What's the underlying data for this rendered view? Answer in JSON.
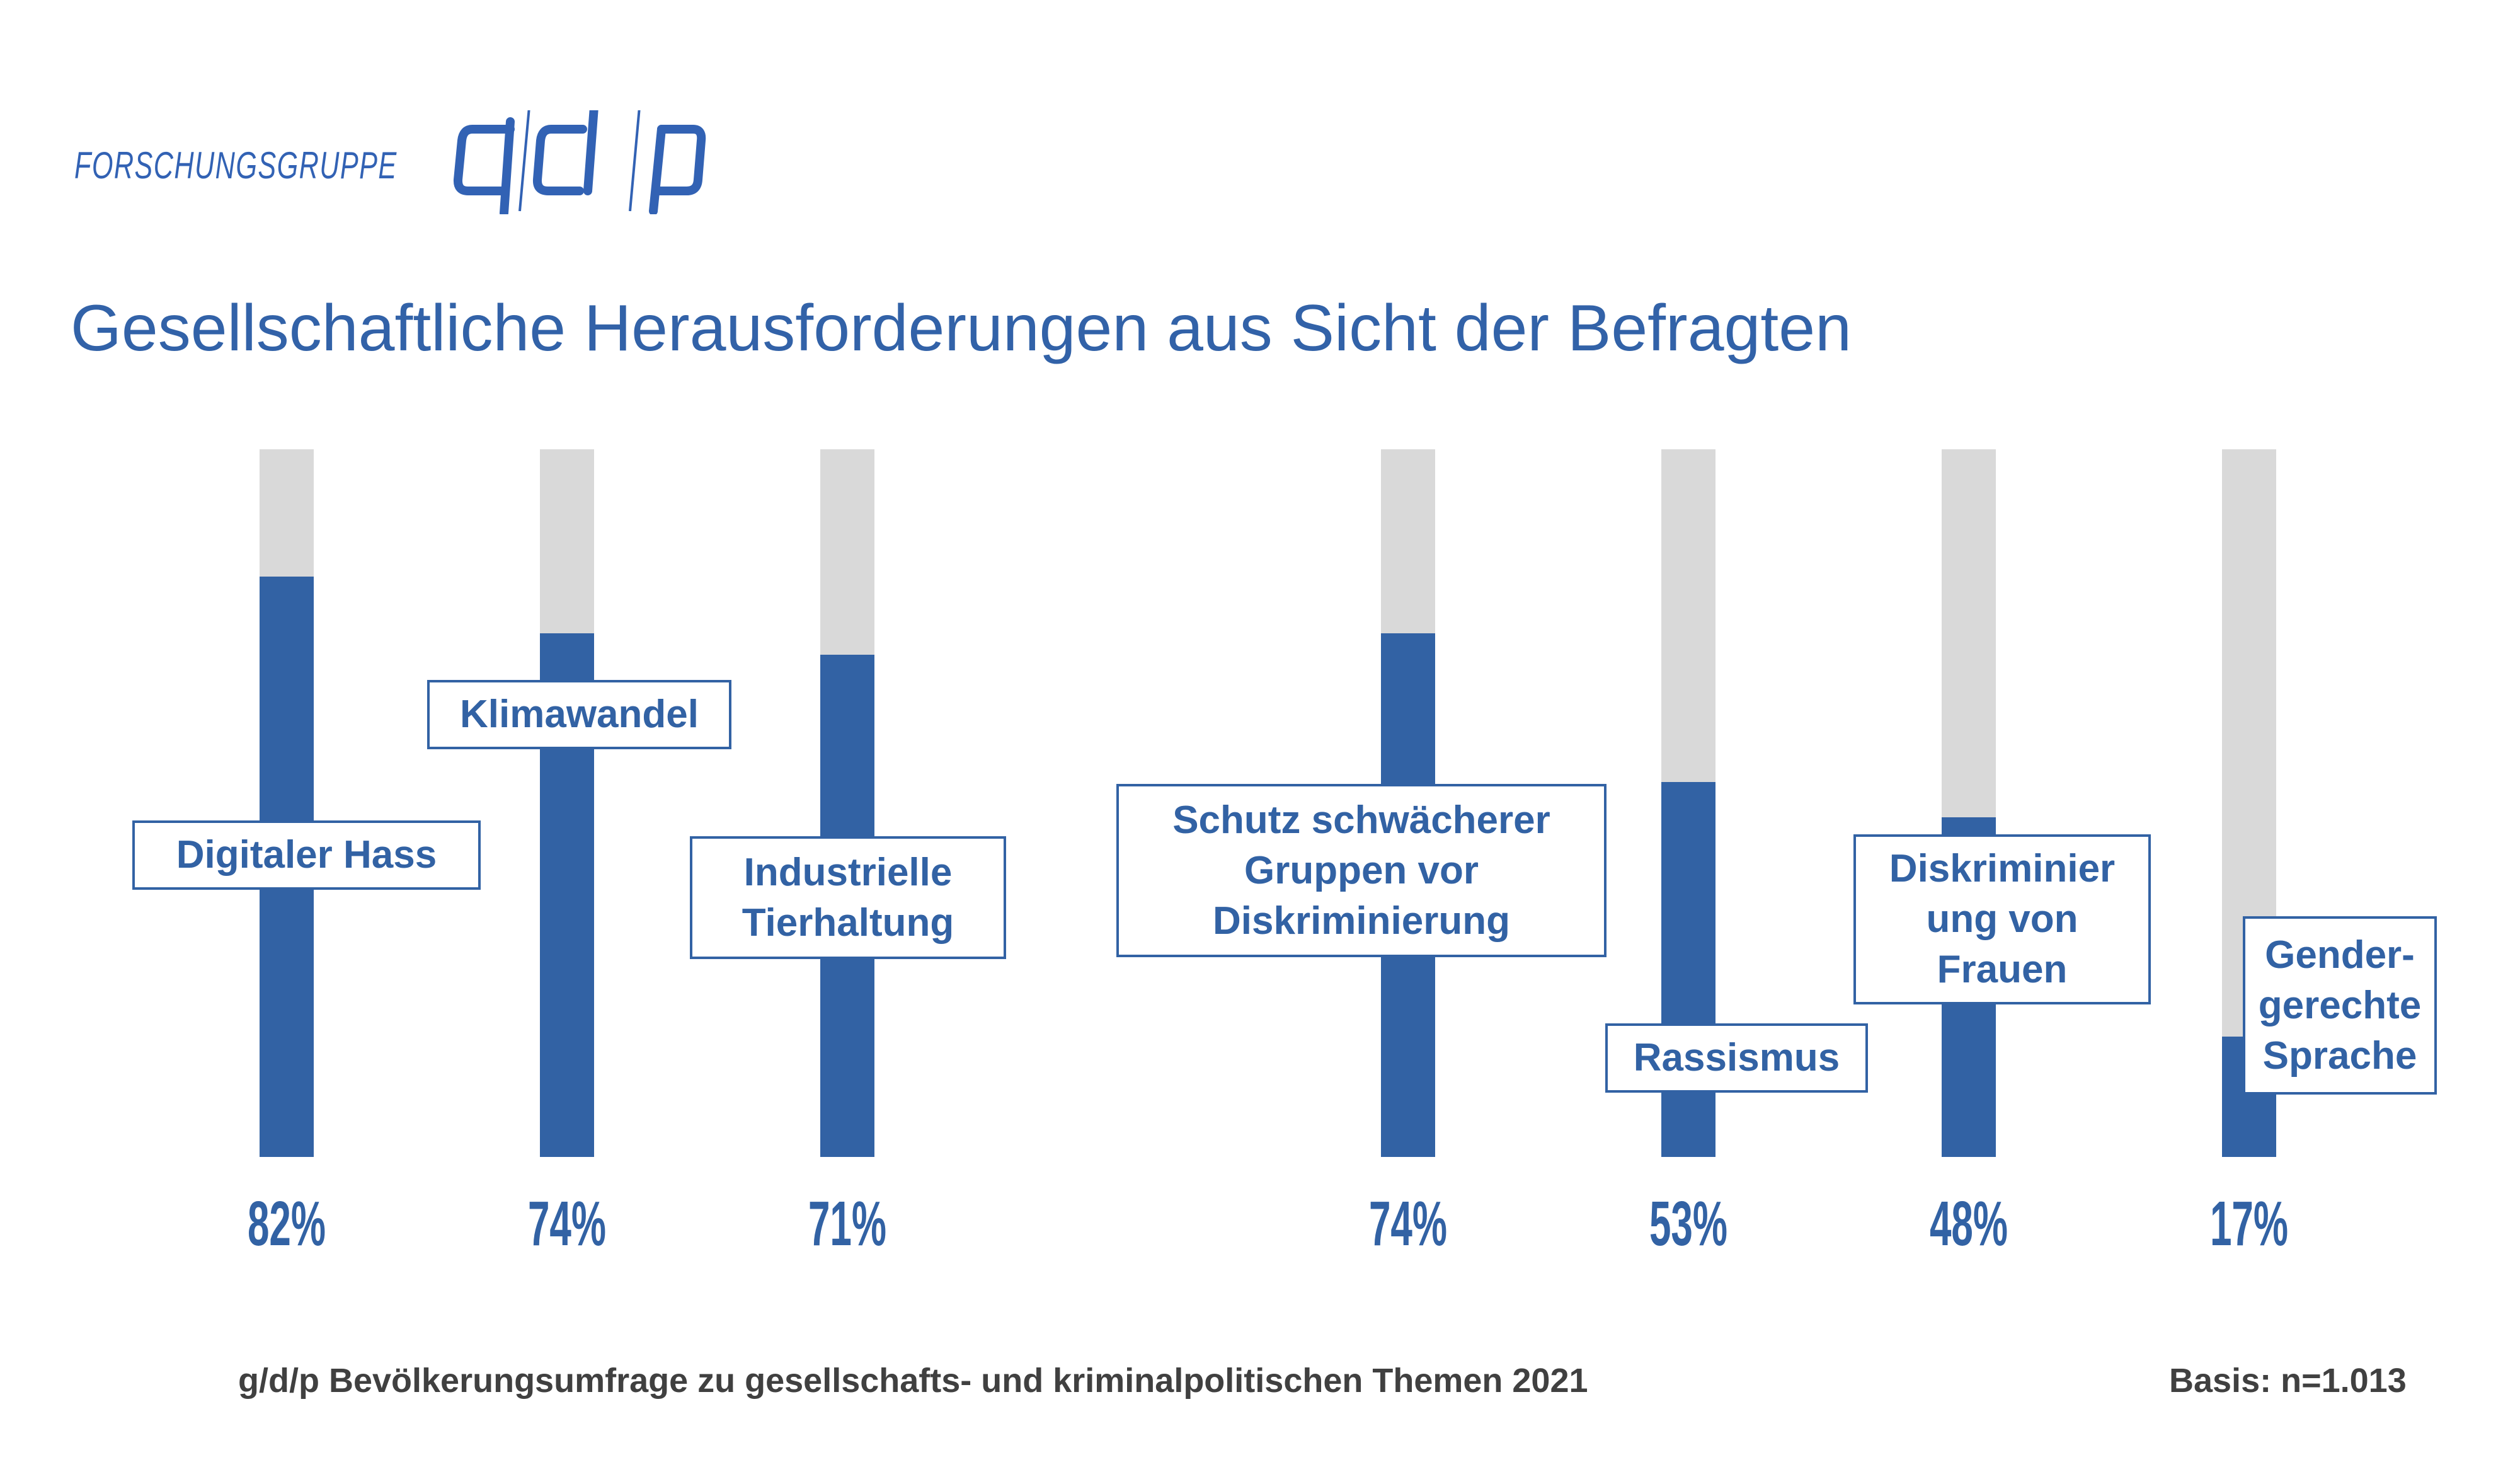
{
  "logo": {
    "text": "FORSCHUNGSGRUPPE",
    "mark": "g/d/p"
  },
  "title": "Gesellschaftliche Herausforderungen aus Sicht der Befragten",
  "footer": {
    "source": "g/d/p Bevölkerungsumfrage zu gesellschafts- und kriminalpolitischen Themen 2021",
    "basis": "Basis: n=1.013"
  },
  "colors": {
    "accent": "#3262a4",
    "track": "#d9d9d9",
    "footer_text": "#404040"
  },
  "chart_data": {
    "type": "bar",
    "title": "Gesellschaftliche Herausforderungen aus Sicht der Befragten",
    "xlabel": "",
    "ylabel": "",
    "ylim": [
      0,
      100
    ],
    "grid": false,
    "legend": "none",
    "categories": [
      "Digitaler Hass",
      "Klimawandel",
      "Industrielle\nTierhaltung",
      "Schutz schwächerer\nGruppen vor\nDiskriminierung",
      "Rassismus",
      "Diskriminier\nung von\nFrauen",
      "Gender-\ngerechte\nSprache"
    ],
    "values": [
      82,
      74,
      71,
      74,
      53,
      48,
      17
    ],
    "value_labels": [
      "82%",
      "74%",
      "71%",
      "74%",
      "53%",
      "48%",
      "17%"
    ]
  }
}
